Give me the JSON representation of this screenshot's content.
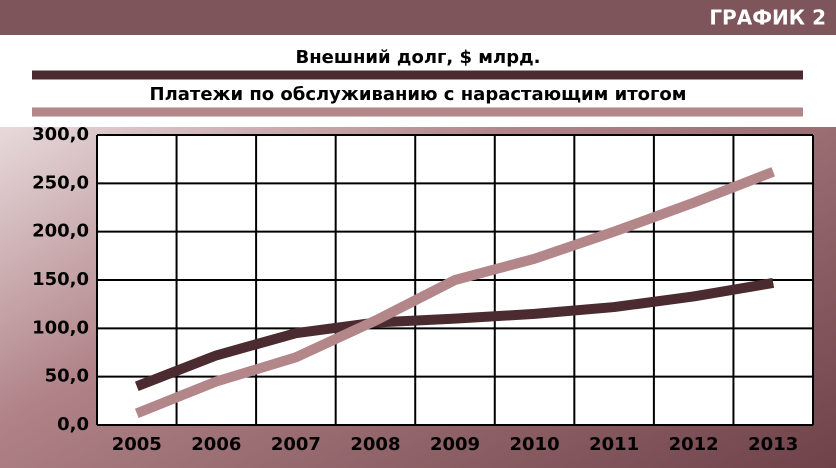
{
  "chart_data": {
    "type": "line",
    "title": "ГРАФИК 2",
    "categories": [
      "2005",
      "2006",
      "2007",
      "2008",
      "2009",
      "2010",
      "2011",
      "2012",
      "2013"
    ],
    "series": [
      {
        "name": "Внешний долг, $ млрд.",
        "color": "#4b2a30",
        "values": [
          40,
          72,
          95,
          106,
          110,
          115,
          122,
          133,
          147
        ]
      },
      {
        "name": "Платежи по обслуживанию с нарастающим итогом",
        "color": "#b3868a",
        "values": [
          12,
          45,
          70,
          108,
          150,
          172,
          200,
          230,
          262
        ]
      }
    ],
    "ylim": [
      0,
      300
    ],
    "yticks": [
      {
        "value": 0,
        "label": "0,0"
      },
      {
        "value": 50,
        "label": "50,0"
      },
      {
        "value": 100,
        "label": "100,0"
      },
      {
        "value": 150,
        "label": "150,0"
      },
      {
        "value": 200,
        "label": "200,0"
      },
      {
        "value": 250,
        "label": "250,0"
      },
      {
        "value": 300,
        "label": "300,0"
      }
    ],
    "grid": true
  }
}
